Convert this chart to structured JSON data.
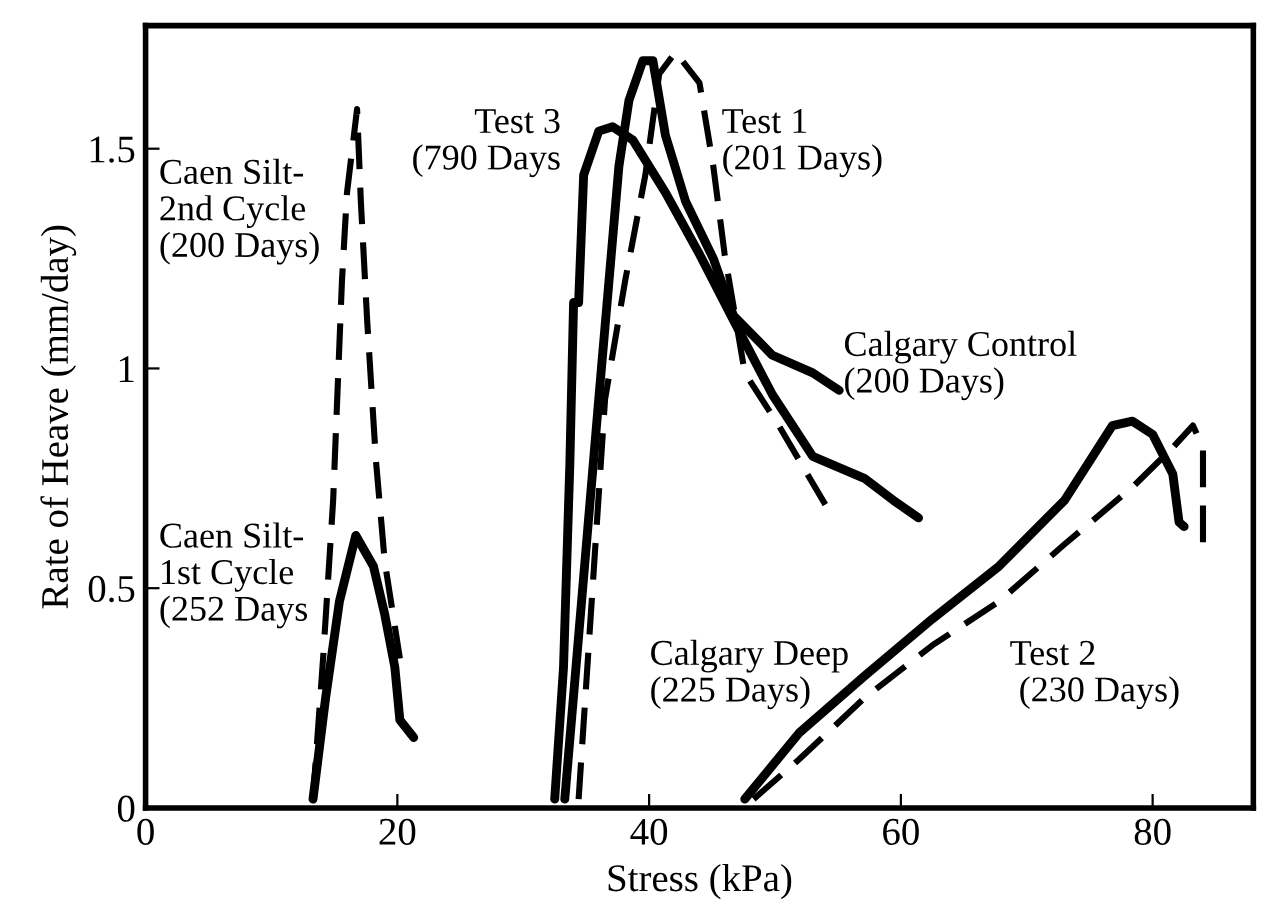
{
  "chart_data": {
    "type": "line",
    "xlabel": "Stress (kPa)",
    "ylabel": "Rate of Heave (mm/day)",
    "xlim": [
      0,
      88
    ],
    "ylim": [
      0,
      1.78
    ],
    "xticks": [
      0,
      20,
      40,
      60,
      80
    ],
    "yticks": [
      0,
      0.5,
      1,
      1.5
    ],
    "grid": false,
    "marker": "none",
    "series": [
      {
        "color": "#000000",
        "line_style": "dashed",
        "x": [
          13.3,
          14.1,
          14.9,
          15.6,
          16.0,
          16.8,
          17.1,
          17.6,
          18.3,
          19.0,
          20.2
        ],
        "values": [
          0.02,
          0.34,
          0.7,
          1.2,
          1.4,
          1.59,
          1.38,
          1.11,
          0.79,
          0.56,
          0.34
        ]
      },
      {
        "color": "#000000",
        "line_style": "solid",
        "x": [
          13.3,
          14.3,
          15.4,
          16.7,
          18.1,
          19.0,
          19.8,
          20.2,
          21.3
        ],
        "values": [
          0.02,
          0.25,
          0.47,
          0.62,
          0.55,
          0.44,
          0.32,
          0.2,
          0.16
        ]
      },
      {
        "color": "#000000",
        "line_style": "solid",
        "x": [
          32.5,
          33.2,
          33.7,
          34.0,
          34.4,
          34.8,
          36.0,
          37.1,
          38.7,
          41.3,
          44.0,
          46.7,
          49.8,
          53.0,
          57.1,
          59.4,
          61.4
        ],
        "values": [
          0.02,
          0.32,
          0.78,
          1.15,
          1.15,
          1.44,
          1.54,
          1.55,
          1.52,
          1.4,
          1.26,
          1.11,
          0.94,
          0.8,
          0.75,
          0.7,
          0.66
        ]
      },
      {
        "color": "#000000",
        "line_style": "solid",
        "x": [
          33.3,
          36.0,
          37.6,
          38.4,
          39.5,
          40.3,
          41.3,
          42.9,
          45.1,
          46.7,
          49.8,
          53.0,
          55.1
        ],
        "values": [
          0.02,
          0.93,
          1.46,
          1.61,
          1.7,
          1.7,
          1.53,
          1.38,
          1.25,
          1.12,
          1.03,
          0.99,
          0.95
        ]
      },
      {
        "color": "#000000",
        "line_style": "dashed",
        "x": [
          34.4,
          36.5,
          38.1,
          39.7,
          40.8,
          42.1,
          44.0,
          45.1,
          46.0,
          47.6,
          50.3,
          54.0
        ],
        "values": [
          0.02,
          0.93,
          1.2,
          1.44,
          1.67,
          1.72,
          1.65,
          1.46,
          1.26,
          0.99,
          0.87,
          0.69
        ]
      },
      {
        "color": "#000000",
        "line_style": "solid",
        "x": [
          47.6,
          51.9,
          57.1,
          62.5,
          67.8,
          73.0,
          76.8,
          78.4,
          80.0,
          81.6,
          82.1,
          82.5
        ],
        "values": [
          0.02,
          0.17,
          0.3,
          0.43,
          0.55,
          0.7,
          0.87,
          0.88,
          0.85,
          0.76,
          0.65,
          0.64
        ]
      },
      {
        "color": "#000000",
        "line_style": "dashed",
        "x": [
          48.3,
          51.9,
          57.1,
          62.5,
          67.8,
          73.0,
          78.4,
          81.6,
          83.2,
          84.0,
          84.0
        ],
        "values": [
          0.02,
          0.11,
          0.25,
          0.37,
          0.47,
          0.6,
          0.73,
          0.82,
          0.87,
          0.82,
          0.6
        ]
      }
    ],
    "annotations": [
      "Caen Silt-\n2nd Cycle\n(200 Days)",
      "Caen Silt-\n1st Cycle\n(252 Days",
      "Test 3\n(790 Days",
      "Test 1\n(201 Days)",
      "Calgary Control\n(200 Days)",
      "Calgary Deep\n(225 Days)",
      "Test 2\n (230 Days)"
    ]
  }
}
